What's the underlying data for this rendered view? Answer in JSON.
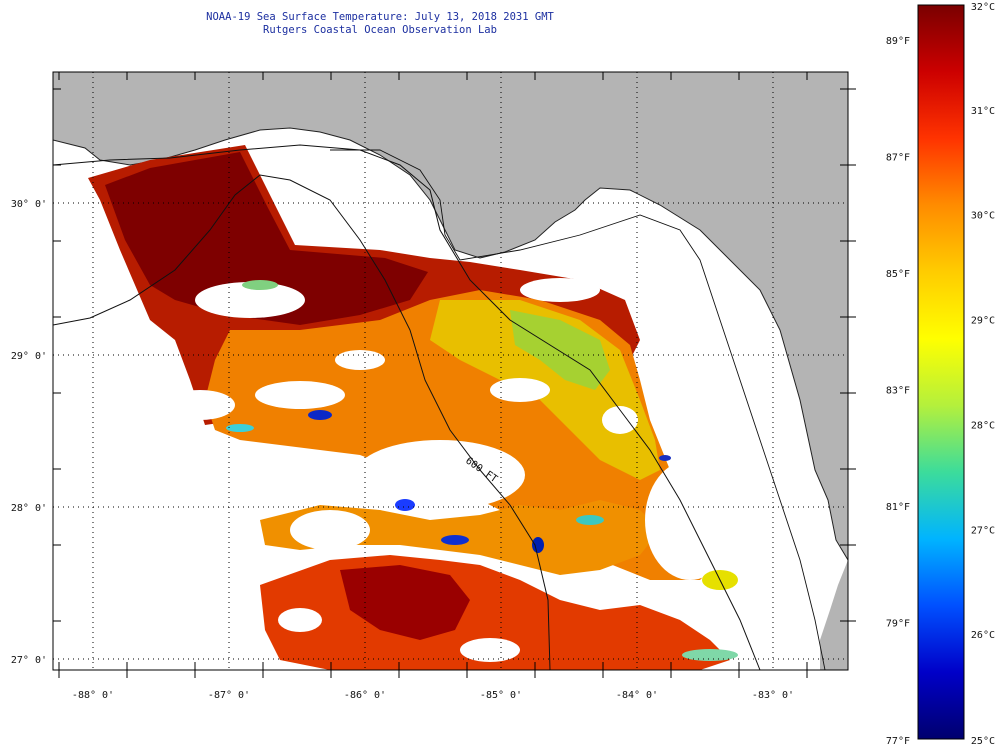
{
  "header": {
    "title": "NOAA-19 Sea Surface Temperature:  July 13, 2018 2031 GMT",
    "subtitle": "Rutgers Coastal Ocean Observation Lab"
  },
  "map": {
    "lon_labels": [
      {
        "lon": -88,
        "text": "-88° 0'"
      },
      {
        "lon": -87,
        "text": "-87° 0'"
      },
      {
        "lon": -86,
        "text": "-86° 0'"
      },
      {
        "lon": -85,
        "text": "-85° 0'"
      },
      {
        "lon": -84,
        "text": "-84° 0'"
      },
      {
        "lon": -83,
        "text": "-83° 0'"
      }
    ],
    "lat_labels": [
      {
        "lat": 30,
        "text": "30° 0'"
      },
      {
        "lat": 29,
        "text": "29° 0'"
      },
      {
        "lat": 28,
        "text": "28° 0'"
      },
      {
        "lat": 27,
        "text": "27° 0'"
      }
    ],
    "land_color": "#b4b4b4",
    "isobath_label": "600 FT"
  },
  "colorbar": {
    "celsius": [
      {
        "t": 32,
        "text": "32°C"
      },
      {
        "t": 31,
        "text": "31°C"
      },
      {
        "t": 30,
        "text": "30°C"
      },
      {
        "t": 29,
        "text": "29°C"
      },
      {
        "t": 28,
        "text": "28°C"
      },
      {
        "t": 27,
        "text": "27°C"
      },
      {
        "t": 26,
        "text": "26°C"
      },
      {
        "t": 25,
        "text": "25°C"
      }
    ],
    "fahrenheit": [
      {
        "t": 89,
        "text": "89°F"
      },
      {
        "t": 87,
        "text": "87°F"
      },
      {
        "t": 85,
        "text": "85°F"
      },
      {
        "t": 83,
        "text": "83°F"
      },
      {
        "t": 81,
        "text": "81°F"
      },
      {
        "t": 79,
        "text": "79°F"
      },
      {
        "t": 77,
        "text": "77°F"
      }
    ],
    "colors": [
      "#7a0000",
      "#cc0000",
      "#ff3300",
      "#ff8c00",
      "#ffcc00",
      "#ffff00",
      "#b4f03c",
      "#3cdc9b",
      "#00b4ff",
      "#0050ff",
      "#0000c8",
      "#00006e"
    ]
  }
}
